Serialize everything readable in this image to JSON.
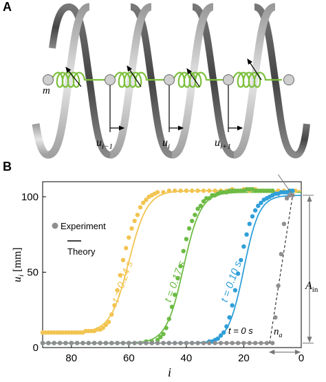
{
  "panel_a": {
    "label": "A",
    "mass_label": "m",
    "displacement_labels": [
      "u_{i−1}",
      "u_i",
      "u_{i+1}"
    ]
  },
  "panel_b": {
    "label": "B"
  },
  "colors": {
    "t024": "#f2c451",
    "t017": "#6dbb45",
    "t010": "#2f9fd8",
    "t0": "#8f8f8f",
    "spring": "#7bbf3a",
    "helix_light": "#d9d9d9",
    "helix_dark": "#555555"
  },
  "chart_data": {
    "type": "scatter",
    "xlabel": "i",
    "ylabel": "u_i [mm]",
    "xlim": [
      90,
      0
    ],
    "ylim": [
      0,
      110
    ],
    "xticks": [
      80,
      60,
      40,
      20,
      0
    ],
    "yticks": [
      0,
      50,
      100
    ],
    "x_reversed": true,
    "legend": {
      "position": "top-left",
      "entries": [
        {
          "label": "Experiment",
          "marker": "dot"
        },
        {
          "label": "Theory",
          "marker": "line"
        }
      ]
    },
    "annotations": {
      "amplitude_label": "A_in",
      "front_label": "n_a"
    },
    "series": [
      {
        "name": "t = 0.24 s",
        "color_key": "t024",
        "low": 10,
        "high": 104,
        "center": 60,
        "width": 3.2,
        "experiment": [
          [
            90,
            10
          ],
          [
            89,
            10
          ],
          [
            88,
            10
          ],
          [
            87,
            10
          ],
          [
            86,
            10
          ],
          [
            85,
            10
          ],
          [
            84,
            10
          ],
          [
            83,
            10
          ],
          [
            82,
            10
          ],
          [
            81,
            10
          ],
          [
            80,
            10
          ],
          [
            79,
            10
          ],
          [
            78,
            10
          ],
          [
            77,
            10
          ],
          [
            76,
            10
          ],
          [
            75,
            11
          ],
          [
            74,
            11
          ],
          [
            73,
            11
          ],
          [
            72,
            11
          ],
          [
            71,
            12
          ],
          [
            70,
            12
          ],
          [
            69,
            13
          ],
          [
            68,
            15
          ],
          [
            67,
            17
          ],
          [
            66,
            22
          ],
          [
            65,
            28
          ],
          [
            64,
            38
          ],
          [
            63,
            48
          ],
          [
            62,
            58
          ],
          [
            61,
            66
          ],
          [
            60,
            73
          ],
          [
            59,
            79
          ],
          [
            58,
            84
          ],
          [
            57,
            88
          ],
          [
            56,
            93
          ],
          [
            55,
            96
          ],
          [
            54,
            98
          ],
          [
            53,
            100
          ],
          [
            52,
            101
          ],
          [
            51,
            102
          ],
          [
            50,
            103
          ],
          [
            48,
            103
          ],
          [
            46,
            104
          ],
          [
            44,
            104
          ],
          [
            42,
            104
          ],
          [
            40,
            104
          ],
          [
            38,
            104
          ],
          [
            36,
            104
          ],
          [
            34,
            104
          ],
          [
            32,
            104
          ],
          [
            30,
            104
          ],
          [
            28,
            104
          ],
          [
            26,
            104
          ],
          [
            24,
            105
          ],
          [
            22,
            104
          ],
          [
            20,
            105
          ],
          [
            18,
            104
          ],
          [
            16,
            105
          ],
          [
            14,
            104
          ],
          [
            12,
            104
          ],
          [
            10,
            104
          ],
          [
            8,
            104
          ],
          [
            6,
            104
          ],
          [
            4,
            104
          ],
          [
            2,
            104
          ]
        ]
      },
      {
        "name": "t = 0.17 s",
        "color_key": "t017",
        "low": 3,
        "high": 103,
        "center": 41,
        "width": 3.0,
        "experiment": [
          [
            90,
            3
          ],
          [
            88,
            3
          ],
          [
            86,
            3
          ],
          [
            84,
            3
          ],
          [
            82,
            3
          ],
          [
            80,
            3
          ],
          [
            78,
            3
          ],
          [
            76,
            3
          ],
          [
            74,
            3
          ],
          [
            72,
            3
          ],
          [
            70,
            3
          ],
          [
            68,
            3
          ],
          [
            66,
            3
          ],
          [
            64,
            3
          ],
          [
            62,
            3
          ],
          [
            60,
            3
          ],
          [
            58,
            3
          ],
          [
            56,
            3
          ],
          [
            54,
            4
          ],
          [
            52,
            4
          ],
          [
            50,
            5
          ],
          [
            49,
            7
          ],
          [
            48,
            9
          ],
          [
            47,
            13
          ],
          [
            46,
            19
          ],
          [
            45,
            27
          ],
          [
            44,
            35
          ],
          [
            43,
            46
          ],
          [
            42,
            54
          ],
          [
            41,
            64
          ],
          [
            40,
            72
          ],
          [
            39,
            79
          ],
          [
            38,
            84
          ],
          [
            37,
            88
          ],
          [
            36,
            92
          ],
          [
            35,
            94
          ],
          [
            34,
            97
          ],
          [
            33,
            99
          ],
          [
            32,
            99
          ],
          [
            31,
            101
          ],
          [
            30,
            101
          ],
          [
            29,
            102
          ],
          [
            28,
            103
          ],
          [
            27,
            103
          ],
          [
            26,
            103
          ],
          [
            25,
            104
          ],
          [
            24,
            104
          ],
          [
            23,
            104
          ],
          [
            22,
            104
          ],
          [
            21,
            104
          ],
          [
            20,
            104
          ],
          [
            19,
            105
          ],
          [
            18,
            105
          ],
          [
            17,
            105
          ],
          [
            16,
            104
          ],
          [
            15,
            104
          ],
          [
            14,
            104
          ],
          [
            13,
            104
          ],
          [
            12,
            104
          ],
          [
            11,
            104
          ],
          [
            10,
            104
          ]
        ]
      },
      {
        "name": "t = 0.10 s",
        "color_key": "t010",
        "low": 3,
        "high": 101,
        "center": 20,
        "width": 2.7,
        "experiment": [
          [
            90,
            3
          ],
          [
            88,
            3
          ],
          [
            86,
            3
          ],
          [
            84,
            3
          ],
          [
            82,
            3
          ],
          [
            80,
            3
          ],
          [
            78,
            3
          ],
          [
            76,
            3
          ],
          [
            74,
            3
          ],
          [
            72,
            3
          ],
          [
            70,
            3
          ],
          [
            68,
            3
          ],
          [
            66,
            3
          ],
          [
            64,
            3
          ],
          [
            62,
            3
          ],
          [
            60,
            3
          ],
          [
            58,
            3
          ],
          [
            56,
            3
          ],
          [
            54,
            3
          ],
          [
            52,
            3
          ],
          [
            50,
            3
          ],
          [
            48,
            3
          ],
          [
            46,
            3
          ],
          [
            44,
            3
          ],
          [
            42,
            3
          ],
          [
            40,
            3
          ],
          [
            38,
            3
          ],
          [
            36,
            3
          ],
          [
            34,
            3
          ],
          [
            32,
            4
          ],
          [
            31,
            4
          ],
          [
            30,
            5
          ],
          [
            29,
            6
          ],
          [
            28,
            8
          ],
          [
            27,
            10
          ],
          [
            26,
            14
          ],
          [
            25,
            20
          ],
          [
            24,
            28
          ],
          [
            23,
            38
          ],
          [
            22,
            49
          ],
          [
            21,
            58
          ],
          [
            20,
            67
          ],
          [
            19,
            75
          ],
          [
            18,
            82
          ],
          [
            17,
            87
          ],
          [
            16,
            91
          ],
          [
            15,
            94
          ],
          [
            14,
            96
          ],
          [
            13,
            98
          ],
          [
            12,
            99
          ],
          [
            11,
            100
          ],
          [
            10,
            101
          ],
          [
            9,
            102
          ],
          [
            8,
            102
          ],
          [
            7,
            103
          ],
          [
            6,
            103
          ],
          [
            5,
            103
          ],
          [
            4,
            104
          ],
          [
            3,
            104
          ]
        ]
      },
      {
        "name": "t = 0 s",
        "color_key": "t0",
        "low": 3,
        "high": 101,
        "center": null,
        "width": null,
        "experiment": [
          [
            90,
            3
          ],
          [
            88,
            3
          ],
          [
            86,
            3
          ],
          [
            84,
            3
          ],
          [
            82,
            3
          ],
          [
            80,
            3
          ],
          [
            78,
            3
          ],
          [
            76,
            3
          ],
          [
            74,
            3
          ],
          [
            72,
            3
          ],
          [
            70,
            3
          ],
          [
            68,
            3
          ],
          [
            66,
            3
          ],
          [
            64,
            3
          ],
          [
            62,
            3
          ],
          [
            60,
            3
          ],
          [
            58,
            3
          ],
          [
            56,
            3
          ],
          [
            54,
            3
          ],
          [
            52,
            3
          ],
          [
            50,
            3
          ],
          [
            48,
            3
          ],
          [
            46,
            3
          ],
          [
            44,
            3
          ],
          [
            42,
            3
          ],
          [
            40,
            3
          ],
          [
            38,
            3
          ],
          [
            36,
            3
          ],
          [
            34,
            3
          ],
          [
            32,
            3
          ],
          [
            30,
            3
          ],
          [
            28,
            3
          ],
          [
            26,
            3
          ],
          [
            24,
            3
          ],
          [
            22,
            3
          ],
          [
            20,
            3
          ],
          [
            18,
            3
          ],
          [
            16,
            3
          ],
          [
            14,
            3
          ],
          [
            12,
            3
          ],
          [
            10,
            3
          ],
          [
            9,
            20
          ],
          [
            8,
            41
          ],
          [
            7,
            62
          ],
          [
            6,
            82
          ],
          [
            5,
            99
          ],
          [
            4,
            101
          ],
          [
            3,
            101
          ]
        ]
      }
    ]
  }
}
